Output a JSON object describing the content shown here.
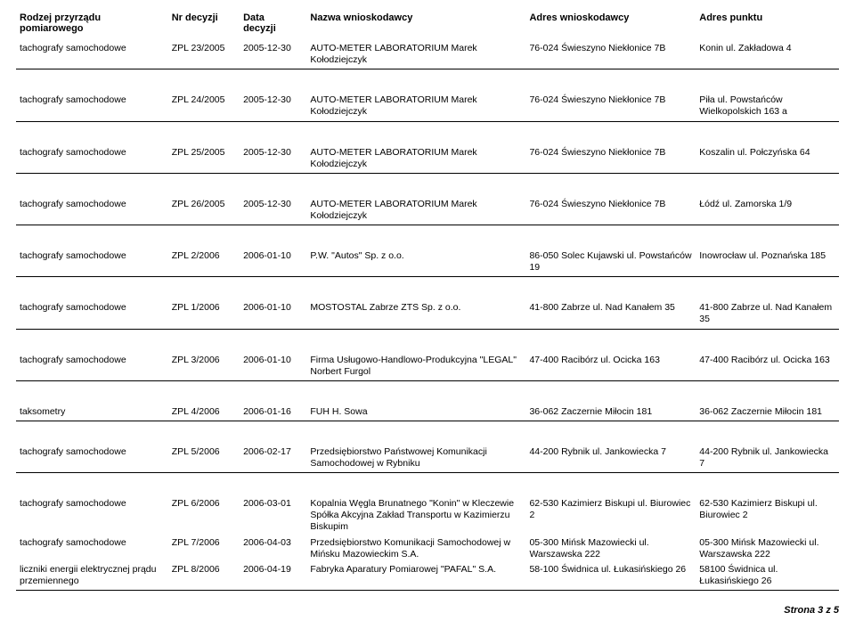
{
  "headers": {
    "apparatus": "Rodzej przyrządu pomiarowego",
    "nr": "Nr decyzji",
    "date_line1": "Data",
    "date_line2": "decyzji",
    "applicant": "Nazwa wnioskodawcy",
    "addr_applicant": "Adres wnioskodawcy",
    "addr_point": "Adres punktu"
  },
  "rows": [
    {
      "apparatus": "tachografy samochodowe",
      "nr": "ZPL 23/2005",
      "date": "2005-12-30",
      "name": "AUTO-METER LABORATORIUM Marek Kołodziejczyk",
      "addr1": "76-024 Świeszyno Niekłonice 7B",
      "addr2": "Konin ul. Zakładowa 4"
    },
    {
      "apparatus": "tachografy samochodowe",
      "nr": "ZPL 24/2005",
      "date": "2005-12-30",
      "name": "AUTO-METER LABORATORIUM Marek Kołodziejczyk",
      "addr1": "76-024 Świeszyno Niekłonice 7B",
      "addr2": "Piła ul. Powstańców Wielkopolskich 163 a"
    },
    {
      "apparatus": "tachografy samochodowe",
      "nr": "ZPL 25/2005",
      "date": "2005-12-30",
      "name": "AUTO-METER LABORATORIUM Marek Kołodziejczyk",
      "addr1": "76-024 Świeszyno Niekłonice 7B",
      "addr2": "Koszalin ul. Połczyńska 64"
    },
    {
      "apparatus": "tachografy samochodowe",
      "nr": "ZPL 26/2005",
      "date": "2005-12-30",
      "name": "AUTO-METER LABORATORIUM Marek Kołodziejczyk",
      "addr1": "76-024 Świeszyno Niekłonice 7B",
      "addr2": "Łódź ul. Zamorska 1/9"
    },
    {
      "apparatus": "tachografy samochodowe",
      "nr": "ZPL 2/2006",
      "date": "2006-01-10",
      "name": "P.W. \"Autos\" Sp. z o.o.",
      "addr1": "86-050 Solec Kujawski ul. Powstańców 19",
      "addr2": "Inowrocław ul. Poznańska 185"
    },
    {
      "apparatus": "tachografy samochodowe",
      "nr": "ZPL 1/2006",
      "date": "2006-01-10",
      "name": "MOSTOSTAL Zabrze ZTS Sp. z o.o.",
      "addr1": "41-800 Zabrze ul. Nad Kanałem 35",
      "addr2": "41-800 Zabrze ul. Nad Kanałem 35"
    },
    {
      "apparatus": "tachografy samochodowe",
      "nr": "ZPL 3/2006",
      "date": "2006-01-10",
      "name": "Firma Usługowo-Handlowo-Produkcyjna \"LEGAL\" Norbert Furgol",
      "addr1": "47-400 Racibórz ul. Ocicka 163",
      "addr2": "47-400 Racibórz ul. Ocicka 163"
    },
    {
      "apparatus": "taksometry",
      "nr": "ZPL 4/2006",
      "date": "2006-01-16",
      "name": "FUH H. Sowa",
      "addr1": "36-062 Zaczernie Miłocin 181",
      "addr2": "36-062 Zaczernie Miłocin 181"
    },
    {
      "apparatus": "tachografy samochodowe",
      "nr": "ZPL 5/2006",
      "date": "2006-02-17",
      "name": "Przedsiębiorstwo Państwowej Komunikacji Samochodowej w Rybniku",
      "addr1": "44-200 Rybnik ul. Jankowiecka 7",
      "addr2": "44-200 Rybnik ul. Jankowiecka 7"
    },
    {
      "apparatus": "tachografy samochodowe",
      "nr": "ZPL 6/2006",
      "date": "2006-03-01",
      "name": "Kopalnia Węgla Brunatnego \"Konin\" w Kleczewie Spółka Akcyjna Zakład Transportu w Kazimierzu Biskupim",
      "addr1": "62-530 Kazimierz Biskupi ul. Biurowiec 2",
      "addr2": "62-530 Kazimierz Biskupi ul. Biurowiec 2"
    },
    {
      "apparatus": "tachografy samochodowe",
      "nr": "ZPL 7/2006",
      "date": "2006-04-03",
      "name": "Przedsiębiorstwo Komunikacji Samochodowej w Mińsku Mazowieckim S.A.",
      "addr1": "05-300 Mińsk Mazowiecki ul. Warszawska 222",
      "addr2": "05-300 Mińsk Mazowiecki ul. Warszawska 222"
    },
    {
      "apparatus": "liczniki energii elektrycznej prądu przemiennego",
      "nr": "ZPL 8/2006",
      "date": "2006-04-19",
      "name": "Fabryka Aparatury Pomiarowej \"PAFAL\" S.A.",
      "addr1": "58-100 Świdnica ul. Łukasińskiego 26",
      "addr2": "58100 Świdnica ul. Łukasińskiego 26"
    }
  ],
  "groups": [
    [
      0
    ],
    [
      1
    ],
    [
      2
    ],
    [
      3
    ],
    [
      4
    ],
    [
      5
    ],
    [
      6
    ],
    [
      7
    ],
    [
      8
    ],
    [
      9,
      10,
      11
    ]
  ],
  "footer": "Strona 3 z 5"
}
